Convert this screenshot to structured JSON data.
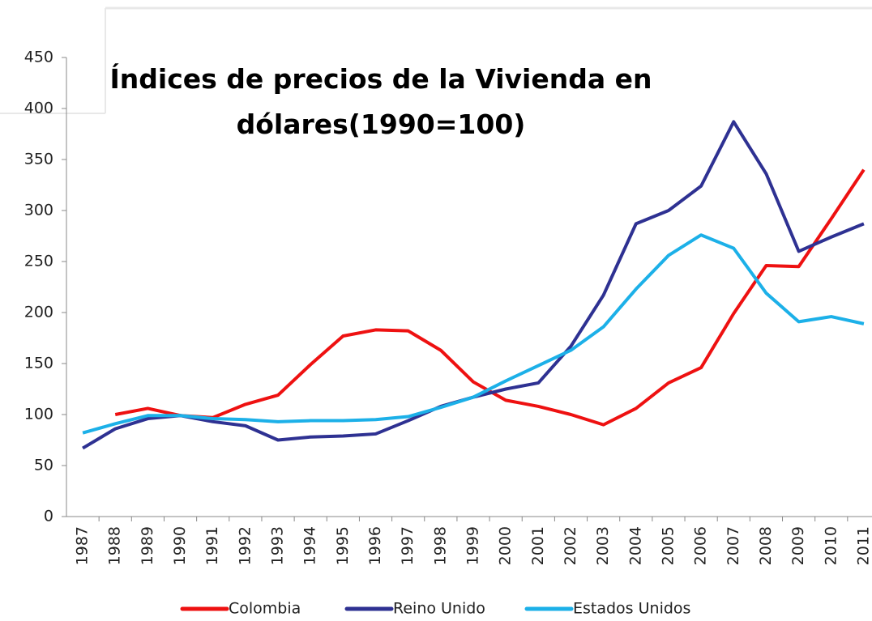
{
  "chart_data": {
    "type": "line",
    "title": "Índices de precios de la Vivienda en dólares(1990=100)",
    "categories": [
      "1987",
      "1988",
      "1989",
      "1990",
      "1991",
      "1992",
      "1993",
      "1994",
      "1995",
      "1996",
      "1997",
      "1998",
      "1999",
      "2000",
      "2001",
      "2002",
      "2003",
      "2004",
      "2005",
      "2006",
      "2007",
      "2008",
      "2009",
      "2010",
      "2011"
    ],
    "series": [
      {
        "name": "Colombia",
        "color": "#ee1111",
        "values": [
          null,
          100,
          106,
          99,
          97,
          110,
          119,
          149,
          177,
          183,
          182,
          163,
          132,
          114,
          108,
          100,
          90,
          106,
          131,
          146,
          199,
          246,
          245,
          292,
          340
        ]
      },
      {
        "name": "Reino Unido",
        "color": "#2e3192",
        "values": [
          67,
          86,
          96,
          99,
          93,
          89,
          75,
          78,
          79,
          81,
          94,
          108,
          117,
          125,
          131,
          167,
          217,
          287,
          300,
          324,
          387,
          336,
          260,
          274,
          287
        ]
      },
      {
        "name": "Estados Unidos",
        "color": "#1cb0e8",
        "values": [
          82,
          91,
          99,
          99,
          96,
          95,
          93,
          94,
          94,
          95,
          98,
          107,
          117,
          133,
          148,
          163,
          186,
          223,
          256,
          276,
          263,
          219,
          191,
          196,
          189
        ]
      }
    ],
    "ylim": [
      0,
      450
    ],
    "yticks": [
      0,
      50,
      100,
      150,
      200,
      250,
      300,
      350,
      400,
      450
    ],
    "legend": "bottom"
  }
}
